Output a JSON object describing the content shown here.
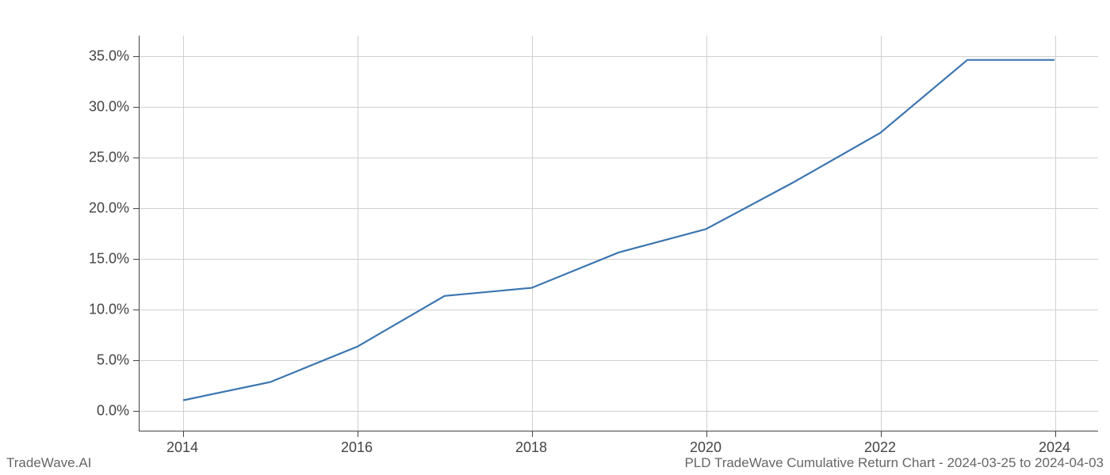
{
  "chart": {
    "type": "line",
    "background_color": "#ffffff",
    "grid_color": "#d0d0d0",
    "axis_color": "#444444",
    "label_color": "#444444",
    "label_fontsize": 18,
    "line_color": "#3b75af",
    "line_width": 2.2,
    "xlim": [
      2013.5,
      2024.5
    ],
    "ylim": [
      -2.0,
      37.0
    ],
    "xticks": [
      2014,
      2016,
      2018,
      2020,
      2022,
      2024
    ],
    "yticks": [
      0.0,
      5.0,
      10.0,
      15.0,
      20.0,
      25.0,
      30.0,
      35.0
    ],
    "ytick_labels": [
      "0.0%",
      "5.0%",
      "10.0%",
      "15.0%",
      "20.0%",
      "25.0%",
      "30.0%",
      "35.0%"
    ],
    "xtick_labels": [
      "2014",
      "2016",
      "2018",
      "2020",
      "2022",
      "2024"
    ],
    "x": [
      2014,
      2015,
      2016,
      2017,
      2018,
      2019,
      2020,
      2021,
      2022,
      2023,
      2024
    ],
    "y": [
      1.0,
      2.8,
      6.3,
      11.3,
      12.1,
      15.6,
      17.9,
      22.5,
      27.4,
      34.6,
      34.6
    ]
  },
  "footer": {
    "left": "TradeWave.AI",
    "right": "PLD TradeWave Cumulative Return Chart - 2024-03-25 to 2024-04-03"
  }
}
